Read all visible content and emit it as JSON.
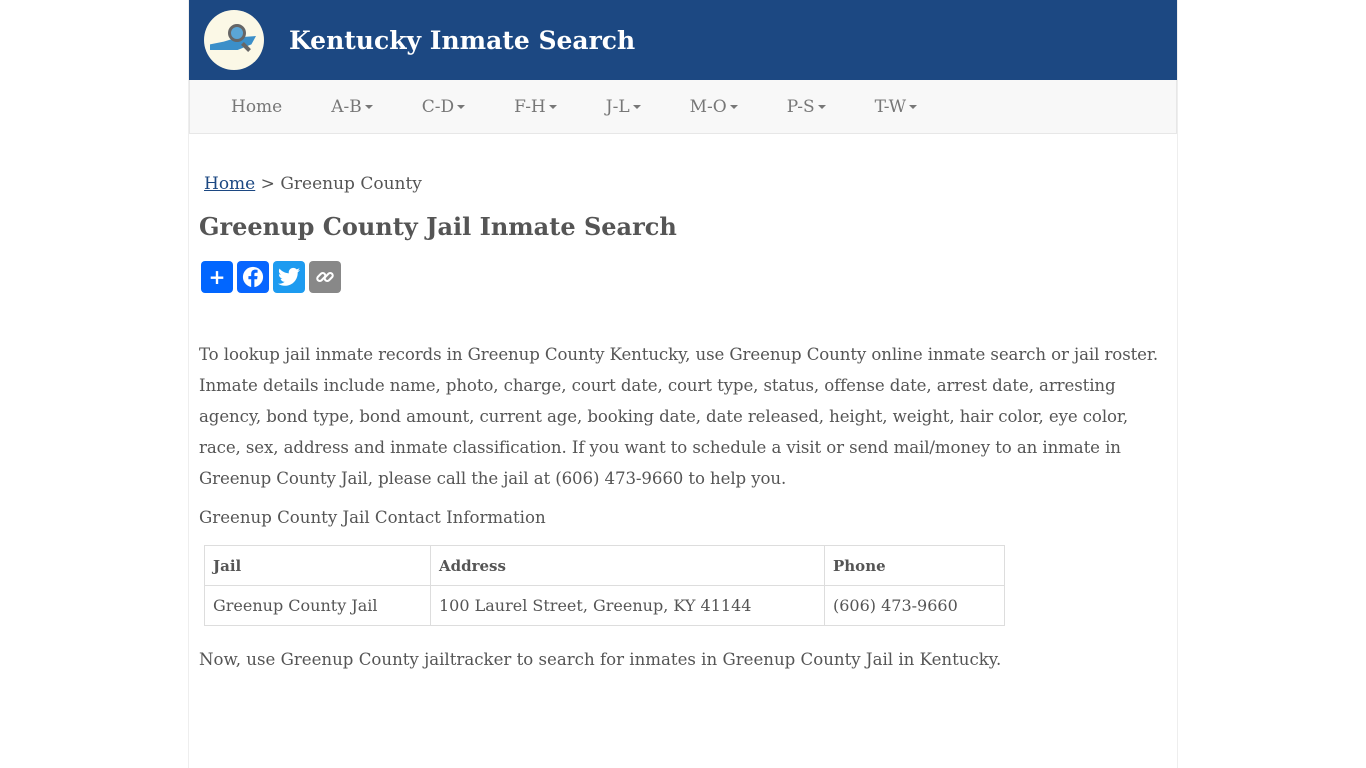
{
  "header": {
    "title": "Kentucky Inmate Search"
  },
  "nav": {
    "items": [
      "Home",
      "A-B",
      "C-D",
      "F-H",
      "J-L",
      "M-O",
      "P-S",
      "T-W"
    ]
  },
  "breadcrumb": {
    "home": "Home",
    "separator": ">",
    "current": "Greenup County"
  },
  "page_title": "Greenup County Jail Inmate Search",
  "share": {
    "icons": [
      "share-plus-icon",
      "facebook-icon",
      "twitter-icon",
      "copy-link-icon"
    ],
    "colors": {
      "plus": "#0166ff",
      "facebook": "#0866ff",
      "twitter": "#1d9bf0",
      "copy": "#888888"
    }
  },
  "intro": "To lookup jail inmate records in Greenup County Kentucky, use Greenup County online inmate search or jail roster. Inmate details include name, photo, charge, court date, court type, status, offense date, arrest date, arresting agency, bond type, bond amount, current age, booking date, date released, height, weight, hair color, eye color, race, sex, address and inmate classification. If you want to schedule a visit or send mail/money to an inmate in Greenup County Jail, please call the jail at (606) 473-9660 to help you.",
  "contact_heading": "Greenup County Jail Contact Information",
  "table": {
    "headers": [
      "Jail",
      "Address",
      "Phone"
    ],
    "rows": [
      [
        "Greenup County Jail",
        "100 Laurel Street, Greenup, KY 41144",
        "(606) 473-9660"
      ]
    ]
  },
  "outro": "Now, use Greenup County jailtracker to search for inmates in Greenup County Jail in Kentucky."
}
